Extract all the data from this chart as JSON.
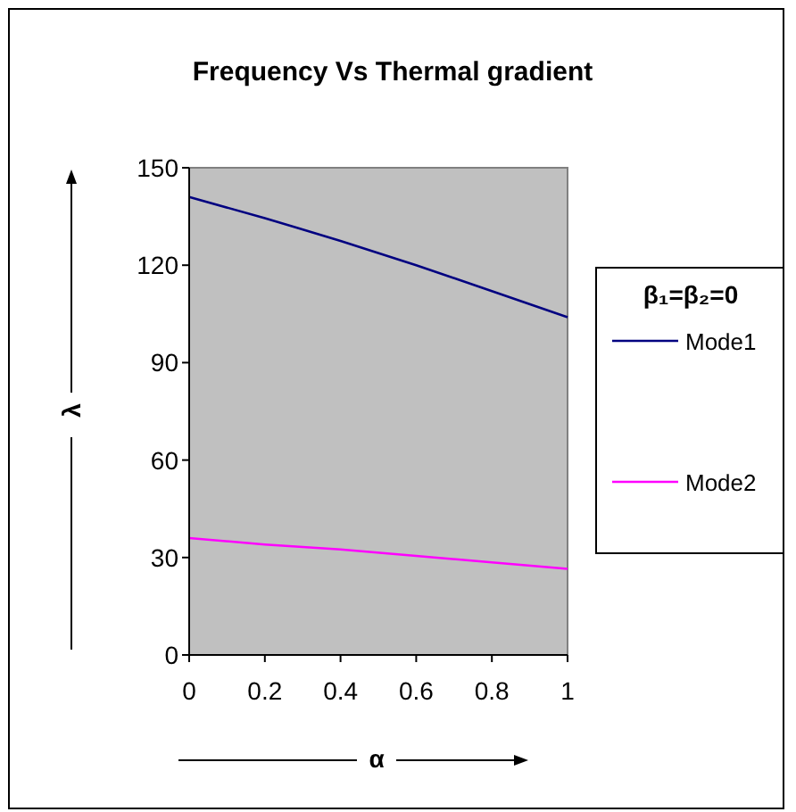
{
  "chart_data": {
    "type": "line",
    "title": "Frequency Vs Thermal gradient",
    "xlabel": "α",
    "ylabel": "λ",
    "legend_title": "β₁=β₂=0",
    "x": [
      0,
      0.2,
      0.4,
      0.6,
      0.8,
      1
    ],
    "series": [
      {
        "name": "Mode1",
        "color": "#000080",
        "values": [
          141,
          134.5,
          127.5,
          120,
          112,
          104
        ]
      },
      {
        "name": "Mode2",
        "color": "#ff00ff",
        "values": [
          36,
          34,
          32.5,
          30.5,
          28.5,
          26.5
        ]
      }
    ],
    "xlim": [
      0,
      1
    ],
    "xticks": [
      0,
      0.2,
      0.4,
      0.6,
      0.8,
      1
    ],
    "ylim": [
      0,
      150
    ],
    "yticks": [
      0,
      30,
      60,
      90,
      120,
      150
    ],
    "grid": false,
    "legend": "right",
    "marker": "none",
    "line_style": "solid"
  }
}
